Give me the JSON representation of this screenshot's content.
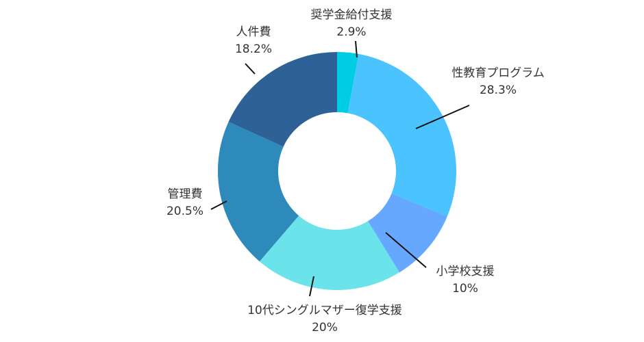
{
  "chart_data": {
    "type": "pie",
    "donut": true,
    "legend": "none",
    "slices": [
      {
        "label": "奨学金給付支援",
        "value": 2.9,
        "display": "2.9%",
        "color": "#00CCE3"
      },
      {
        "label": "性教育プログラム",
        "value": 28.3,
        "display": "28.3%",
        "color": "#4AC3FF"
      },
      {
        "label": "小学校支援",
        "value": 10,
        "display": "10%",
        "color": "#66A8FF"
      },
      {
        "label": "10代シングルマザー復学支援",
        "value": 20,
        "display": "20%",
        "color": "#6BE3EA"
      },
      {
        "label": "管理費",
        "value": 20.5,
        "display": "20.5%",
        "color": "#2E8ABA"
      },
      {
        "label": "人件費",
        "value": 18.2,
        "display": "18.2%",
        "color": "#2E6296"
      }
    ]
  }
}
